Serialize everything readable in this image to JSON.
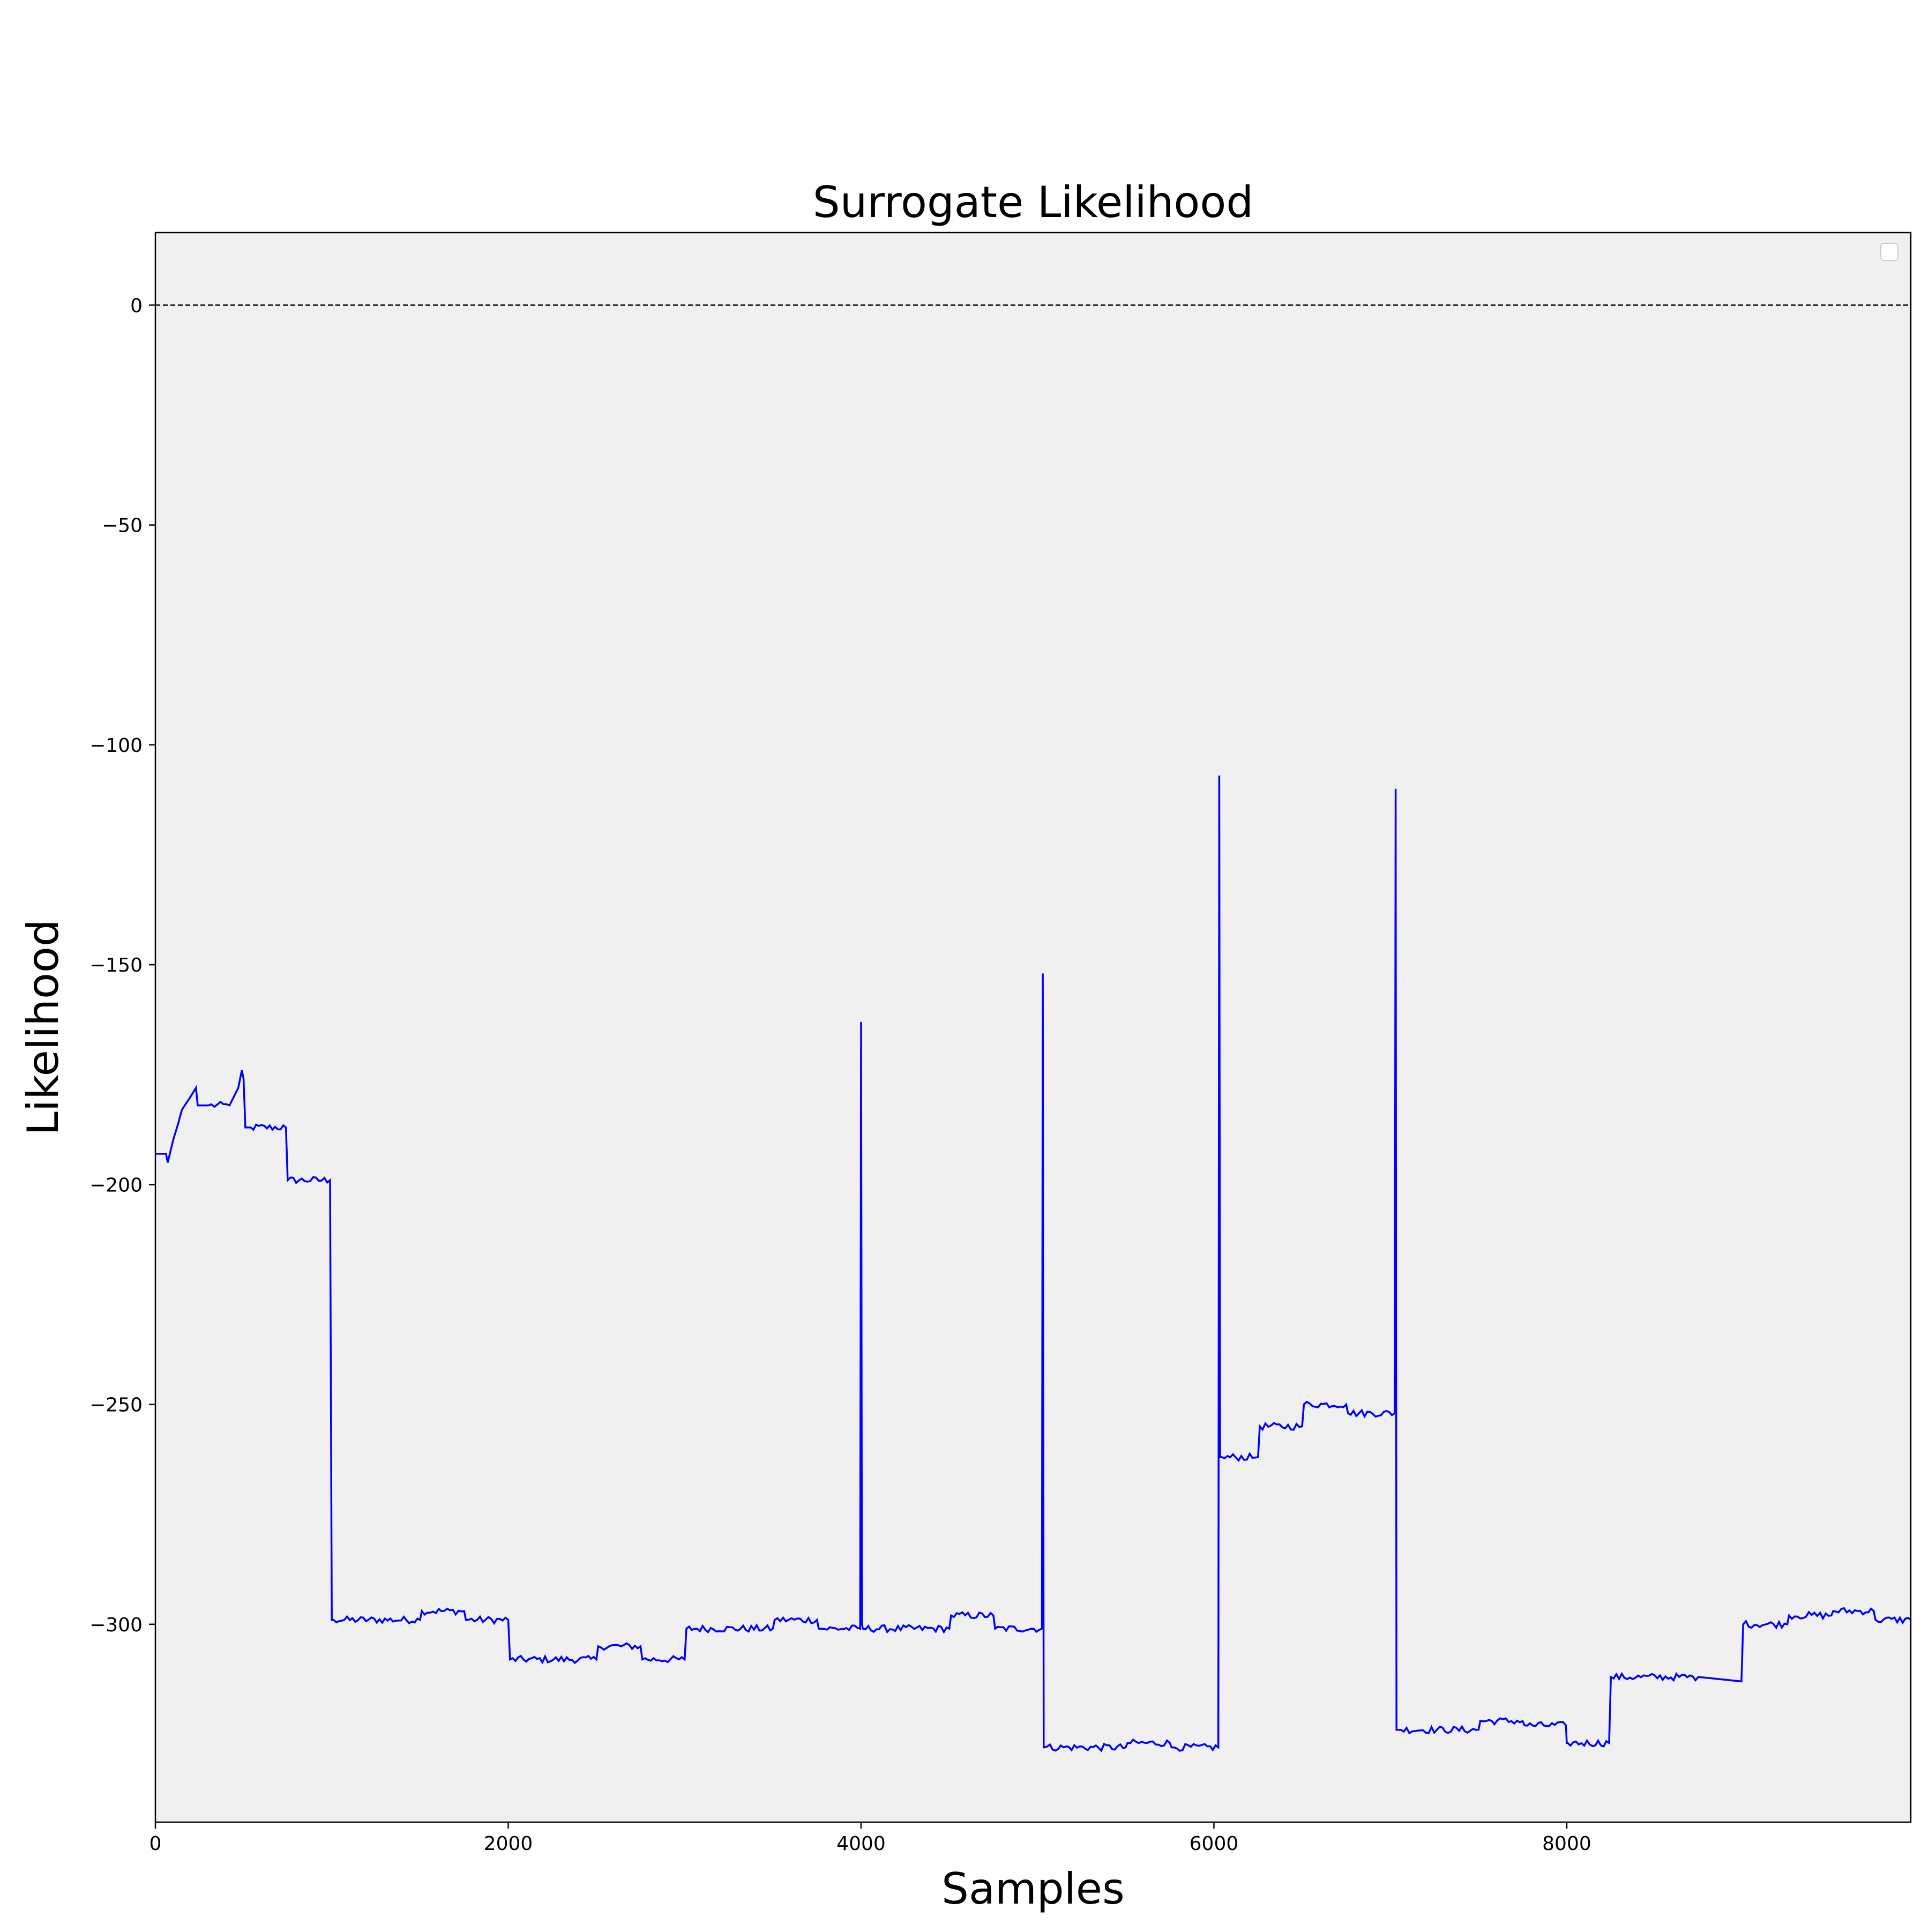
{
  "chart_data": {
    "type": "line",
    "title": "Surrogate  Likelihood",
    "xlabel": "Samples",
    "ylabel": "Likelihood",
    "xlim": [
      0,
      9950
    ],
    "ylim": [
      -345,
      16.5
    ],
    "xticks": [
      0,
      2000,
      4000,
      6000,
      8000
    ],
    "xtick_labels": [
      "0",
      "2000",
      "4000",
      "6000",
      "8000"
    ],
    "yticks": [
      0,
      -50,
      -100,
      -150,
      -200,
      -250,
      -300
    ],
    "ytick_labels": [
      "0",
      "−50",
      "−100",
      "−150",
      "−200",
      "−250",
      "−300"
    ],
    "grid": false,
    "legend": "upper right (empty)",
    "reference_line": {
      "y": 0,
      "style": "dashed",
      "color": "#000000"
    },
    "series": [
      {
        "color": "#0000ff",
        "x": [
          0,
          60,
          70,
          100,
          130,
          150,
          200,
          230,
          240,
          250,
          300,
          420,
          470,
          490,
          500,
          510,
          540,
          740,
          750,
          990,
          1000,
          1010,
          1500,
          1510,
          1750,
          1760,
          2000,
          2010,
          2500,
          2510,
          2750,
          2760,
          3000,
          3010,
          3500,
          3510,
          3750,
          3760,
          3995,
          4000,
          4005,
          4010,
          4500,
          4510,
          4750,
          4760,
          5025,
          5030,
          5035,
          5040,
          5500,
          5510,
          5750,
          5760,
          6025,
          6030,
          6035,
          6045,
          6250,
          6260,
          6500,
          6510,
          6750,
          6760,
          7025,
          7030,
          7035,
          7045,
          7500,
          7510,
          7750,
          7760,
          7995,
          8000,
          8005,
          8240,
          8250,
          8745,
          8750,
          8990,
          9000,
          9250,
          9260,
          9500,
          9510,
          9740,
          9750,
          9950
        ],
        "y": [
          -193,
          -193,
          -195,
          -190,
          -186,
          -183,
          -180,
          -178,
          -182,
          -182,
          -182,
          -182,
          -178,
          -174,
          -176,
          -187,
          -187,
          -187,
          -199,
          -199,
          -299,
          -299,
          -299,
          -297,
          -297,
          -299,
          -299,
          -308,
          -308,
          -305,
          -305,
          -308,
          -308,
          -301,
          -301,
          -299,
          -299,
          -301,
          -301,
          -163,
          -300,
          -301,
          -301,
          -298,
          -298,
          -301,
          -301,
          -152,
          -328,
          -328,
          -328,
          -327,
          -327,
          -328,
          -328,
          -107,
          -262,
          -262,
          -262,
          -255,
          -255,
          -250,
          -250,
          -252,
          -252,
          -110,
          -324,
          -324,
          -324,
          -322,
          -322,
          -323,
          -323,
          -327,
          -327,
          -327,
          -312,
          -312,
          -312,
          -313,
          -300,
          -300,
          -298,
          -298,
          -297,
          -297,
          -299,
          -299
        ]
      }
    ]
  }
}
